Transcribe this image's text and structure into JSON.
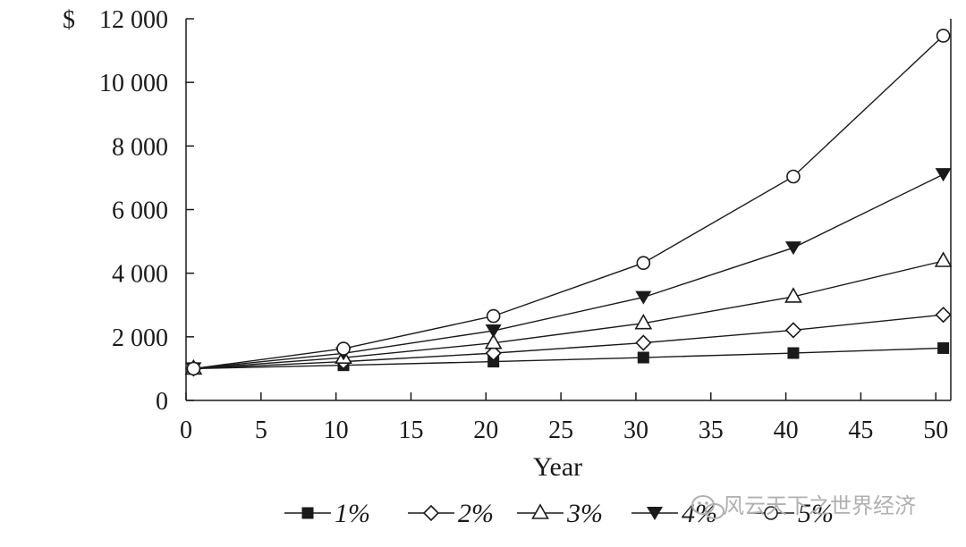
{
  "chart_data": {
    "type": "line",
    "title": "",
    "xlabel": "Year",
    "ylabel": "",
    "y_unit": "$",
    "x": [
      0,
      10,
      20,
      30,
      40,
      50
    ],
    "xlim": [
      0,
      51
    ],
    "ylim": [
      0,
      12000
    ],
    "xticks": [
      0,
      5,
      10,
      15,
      20,
      25,
      30,
      35,
      40,
      45,
      50
    ],
    "yticks": [
      0,
      2000,
      4000,
      6000,
      8000,
      10000,
      12000
    ],
    "xtick_labels": [
      "0",
      "5",
      "10",
      "15",
      "20",
      "25",
      "30",
      "35",
      "40",
      "45",
      "50"
    ],
    "ytick_labels": [
      "0",
      "2 000",
      "4 000",
      "6 000",
      "8 000",
      "10 000",
      "12 000"
    ],
    "grid": false,
    "legend_position": "bottom",
    "series": [
      {
        "name": "1%",
        "marker": "filled-square",
        "values": [
          1000,
          1105,
          1220,
          1348,
          1489,
          1645
        ]
      },
      {
        "name": "2%",
        "marker": "hollow-diamond",
        "values": [
          1000,
          1219,
          1486,
          1811,
          2208,
          2692
        ]
      },
      {
        "name": "3%",
        "marker": "hollow-triangle-up",
        "values": [
          1000,
          1344,
          1806,
          2427,
          3262,
          4384
        ]
      },
      {
        "name": "4%",
        "marker": "filled-triangle-down",
        "values": [
          1000,
          1480,
          2191,
          3243,
          4801,
          7107
        ]
      },
      {
        "name": "5%",
        "marker": "hollow-circle",
        "values": [
          1000,
          1629,
          2653,
          4322,
          7040,
          11467
        ]
      }
    ]
  },
  "watermark": {
    "text": "风云天下之世界经济",
    "icon": "wechat-icon"
  },
  "colors": {
    "ink": "#1a1a1a",
    "background": "#ffffff",
    "watermark": "#b0b0b0"
  }
}
